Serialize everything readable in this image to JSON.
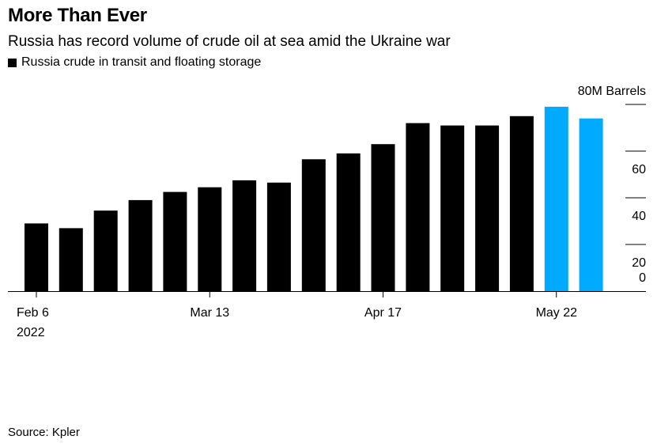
{
  "title": "More Than Ever",
  "subtitle": "Russia has record volume of crude oil at sea amid the Ukraine war",
  "legend": {
    "label": "Russia crude in transit and floating storage",
    "color": "#000000"
  },
  "source": "Source: Kpler",
  "colors": {
    "default_bar": "#000000",
    "highlight_bar": "#00aaff"
  },
  "chart_data": {
    "type": "bar",
    "title": "More Than Ever",
    "subtitle": "Russia has record volume of crude oil at sea amid the Ukraine war",
    "x_tick_labels": [
      {
        "index": 0,
        "lines": [
          "Feb 6",
          "2022"
        ]
      },
      {
        "index": 5,
        "lines": [
          "Mar 13"
        ]
      },
      {
        "index": 10,
        "lines": [
          "Apr 17"
        ]
      },
      {
        "index": 15,
        "lines": [
          "May 22"
        ]
      }
    ],
    "y_axis": {
      "side": "right",
      "ylim": [
        0,
        80
      ],
      "ticks": [
        0,
        20,
        40,
        60,
        80
      ],
      "top_label": "80M Barrels"
    },
    "series": [
      {
        "name": "Russia crude in transit and floating storage",
        "values": [
          29,
          27,
          34.5,
          39,
          42.5,
          44.5,
          47.5,
          46.5,
          56.5,
          59,
          63,
          72,
          71,
          71,
          75,
          79,
          74
        ],
        "highlight": [
          false,
          false,
          false,
          false,
          false,
          false,
          false,
          false,
          false,
          false,
          false,
          false,
          false,
          false,
          false,
          true,
          true
        ]
      }
    ],
    "grid": false,
    "legend_position": "top-left"
  }
}
